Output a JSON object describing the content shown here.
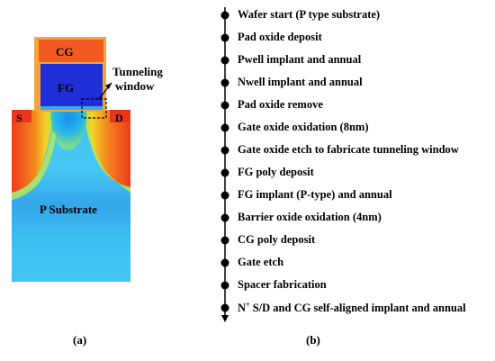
{
  "panel_a": {
    "labels": {
      "cg": "CG",
      "fg": "FG",
      "source": "S",
      "drain": "D",
      "substrate": "P Substrate",
      "tunneling_line1": "Tunneling",
      "tunneling_line2": "window"
    },
    "caption": "(a)",
    "colors": {
      "spacer": "#f3a43a",
      "cg": "#f25a22",
      "fg": "#1e2fd8",
      "sd_region": "#e8361c",
      "substrate_deep": "#2db4ec",
      "substrate_mid": "#3a9ee4"
    }
  },
  "panel_b": {
    "steps": [
      "Wafer start (P type substrate)",
      "Pad oxide deposit",
      "Pwell implant and annual",
      "Nwell implant and annual",
      "Pad oxide remove",
      "Gate oxide oxidation (8nm)",
      "Gate oxide etch to fabricate tunneling window",
      "FG poly deposit",
      "FG implant (P-type) and annual",
      "Barrier oxide oxidation (4nm)",
      "CG poly deposit",
      "Gate etch",
      "Spacer fabrication",
      "S/D and CG self-aligned implant and annual"
    ],
    "last_step_prefix": "N",
    "last_step_sup": "+",
    "caption": "(b)"
  }
}
